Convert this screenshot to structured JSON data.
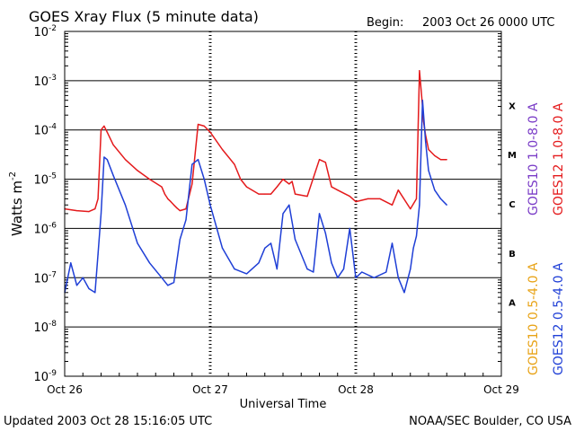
{
  "header": {
    "title": "GOES Xray Flux (5 minute data)",
    "begin_label": "Begin:",
    "begin_value": "2003 Oct 26 0000 UTC"
  },
  "footer": {
    "updated": "Updated 2003 Oct 28 15:16:05 UTC",
    "source": "NOAA/SEC Boulder, CO USA"
  },
  "colors": {
    "goes12_long": "#e41a1c",
    "goes12_short": "#1f3fd6",
    "goes10_long": "#7a3cc7",
    "goes10_short": "#e8a317",
    "axis": "#000000"
  },
  "chart_data": {
    "type": "line",
    "title": "GOES Xray Flux (5 minute data)",
    "xlabel": "Universal Time",
    "ylabel": "Watts m",
    "ylabel_superscript": "-2",
    "y_scale": "log",
    "ylim": [
      1e-09,
      0.01
    ],
    "xlim": [
      "2003-10-26T00:00",
      "2003-10-29T00:00"
    ],
    "x_ticks": [
      {
        "label": "Oct 26",
        "t": "2003-10-26T00:00"
      },
      {
        "label": "Oct 27",
        "t": "2003-10-27T00:00"
      },
      {
        "label": "Oct 28",
        "t": "2003-10-28T00:00"
      },
      {
        "label": "Oct 29",
        "t": "2003-10-29T00:00"
      }
    ],
    "y_ticks": [
      {
        "base": "10",
        "exp": "-9",
        "value": 1e-09
      },
      {
        "base": "10",
        "exp": "-8",
        "value": 1e-08
      },
      {
        "base": "10",
        "exp": "-7",
        "value": 1e-07
      },
      {
        "base": "10",
        "exp": "-6",
        "value": 1e-06
      },
      {
        "base": "10",
        "exp": "-5",
        "value": 1e-05
      },
      {
        "base": "10",
        "exp": "-4",
        "value": 0.0001
      },
      {
        "base": "10",
        "exp": "-3",
        "value": 0.001
      },
      {
        "base": "10",
        "exp": "-2",
        "value": 0.01
      }
    ],
    "grid": "horizontal lines at each decade",
    "flare_classes": [
      {
        "label": "X",
        "value": 0.000316
      },
      {
        "label": "M",
        "value": 3.16e-05
      },
      {
        "label": "C",
        "value": 3.16e-06
      },
      {
        "label": "B",
        "value": 3.16e-07
      },
      {
        "label": "A",
        "value": 3.16e-08
      }
    ],
    "legend": [
      {
        "text": "GOES10 1.0-8.0 A",
        "color": "#7a3cc7"
      },
      {
        "text": "GOES12 1.0-8.0 A",
        "color": "#e41a1c"
      },
      {
        "text": "GOES10 0.5-4.0 A",
        "color": "#e8a317"
      },
      {
        "text": "GOES12 0.5-4.0 A",
        "color": "#1f3fd6"
      }
    ],
    "legend_position": "right, vertical",
    "series": [
      {
        "name": "GOES12 1.0-8.0 A",
        "color": "#e41a1c",
        "x": [
          "2003-10-26T00:00",
          "2003-10-26T02:00",
          "2003-10-26T04:00",
          "2003-10-26T05:00",
          "2003-10-26T05:30",
          "2003-10-26T06:00",
          "2003-10-26T06:30",
          "2003-10-26T07:00",
          "2003-10-26T08:00",
          "2003-10-26T10:00",
          "2003-10-26T12:00",
          "2003-10-26T14:00",
          "2003-10-26T16:00",
          "2003-10-26T16:30",
          "2003-10-26T17:00",
          "2003-10-26T17:30",
          "2003-10-26T18:00",
          "2003-10-26T18:30",
          "2003-10-26T19:00",
          "2003-10-26T20:00",
          "2003-10-26T21:00",
          "2003-10-26T22:00",
          "2003-10-26T23:00",
          "2003-10-27T00:00",
          "2003-10-27T02:00",
          "2003-10-27T04:00",
          "2003-10-27T05:00",
          "2003-10-27T06:00",
          "2003-10-27T08:00",
          "2003-10-27T09:00",
          "2003-10-27T10:00",
          "2003-10-27T11:00",
          "2003-10-27T12:00",
          "2003-10-27T13:00",
          "2003-10-27T13:30",
          "2003-10-27T14:00",
          "2003-10-27T16:00",
          "2003-10-27T18:00",
          "2003-10-27T19:00",
          "2003-10-27T20:00",
          "2003-10-27T21:00",
          "2003-10-27T23:00",
          "2003-10-28T00:00",
          "2003-10-28T02:00",
          "2003-10-28T04:00",
          "2003-10-28T06:00",
          "2003-10-28T07:00",
          "2003-10-28T09:00",
          "2003-10-28T10:00",
          "2003-10-28T10:30",
          "2003-10-28T11:00",
          "2003-10-28T11:10",
          "2003-10-28T11:30",
          "2003-10-28T12:00",
          "2003-10-28T13:00",
          "2003-10-28T14:00",
          "2003-10-28T15:00"
        ],
        "values": [
          2.5e-06,
          2.3e-06,
          2.2e-06,
          2.5e-06,
          4e-06,
          0.0001,
          0.00012,
          9e-05,
          5e-05,
          2.5e-05,
          1.5e-05,
          1e-05,
          7e-06,
          5e-06,
          4e-06,
          3.5e-06,
          3e-06,
          2.6e-06,
          2.3e-06,
          2.5e-06,
          8e-06,
          0.00013,
          0.00012,
          9e-05,
          4e-05,
          2e-05,
          1e-05,
          7e-06,
          5e-06,
          5e-06,
          5e-06,
          7e-06,
          1e-05,
          8e-06,
          9e-06,
          5e-06,
          4.5e-06,
          2.5e-05,
          2.2e-05,
          7e-06,
          6e-06,
          4.5e-06,
          3.5e-06,
          4e-06,
          4e-06,
          3e-06,
          6e-06,
          2.5e-06,
          4e-06,
          0.0016,
          0.0003,
          0.00015,
          8e-05,
          4e-05,
          3e-05,
          2.5e-05,
          2.5e-05
        ]
      },
      {
        "name": "GOES12 0.5-4.0 A",
        "color": "#1f3fd6",
        "x": [
          "2003-10-26T00:00",
          "2003-10-26T01:00",
          "2003-10-26T02:00",
          "2003-10-26T03:00",
          "2003-10-26T04:00",
          "2003-10-26T05:00",
          "2003-10-26T05:30",
          "2003-10-26T06:00",
          "2003-10-26T06:30",
          "2003-10-26T07:00",
          "2003-10-26T08:00",
          "2003-10-26T10:00",
          "2003-10-26T12:00",
          "2003-10-26T14:00",
          "2003-10-26T16:00",
          "2003-10-26T17:00",
          "2003-10-26T18:00",
          "2003-10-26T19:00",
          "2003-10-26T20:00",
          "2003-10-26T21:00",
          "2003-10-26T22:00",
          "2003-10-26T23:00",
          "2003-10-27T00:00",
          "2003-10-27T02:00",
          "2003-10-27T04:00",
          "2003-10-27T06:00",
          "2003-10-27T08:00",
          "2003-10-27T09:00",
          "2003-10-27T10:00",
          "2003-10-27T11:00",
          "2003-10-27T12:00",
          "2003-10-27T13:00",
          "2003-10-27T14:00",
          "2003-10-27T16:00",
          "2003-10-27T17:00",
          "2003-10-27T18:00",
          "2003-10-27T19:00",
          "2003-10-27T20:00",
          "2003-10-27T21:00",
          "2003-10-27T22:00",
          "2003-10-27T23:00",
          "2003-10-28T00:00",
          "2003-10-28T01:00",
          "2003-10-28T03:00",
          "2003-10-28T05:00",
          "2003-10-28T06:00",
          "2003-10-28T07:00",
          "2003-10-28T08:00",
          "2003-10-28T09:00",
          "2003-10-28T09:30",
          "2003-10-28T10:00",
          "2003-10-28T10:30",
          "2003-10-28T11:00",
          "2003-10-28T11:30",
          "2003-10-28T12:00",
          "2003-10-28T13:00",
          "2003-10-28T14:00",
          "2003-10-28T15:00"
        ],
        "values": [
          5e-08,
          2e-07,
          7e-08,
          1e-07,
          6e-08,
          5e-08,
          3e-07,
          2e-06,
          2.8e-05,
          2.5e-05,
          1.2e-05,
          3e-06,
          5e-07,
          2e-07,
          1e-07,
          7e-08,
          8e-08,
          6e-07,
          1.5e-06,
          2e-05,
          2.5e-05,
          1e-05,
          3e-06,
          4e-07,
          1.5e-07,
          1.2e-07,
          2e-07,
          4e-07,
          5e-07,
          1.5e-07,
          2e-06,
          3e-06,
          6e-07,
          1.5e-07,
          1.3e-07,
          2e-06,
          8e-07,
          2e-07,
          1e-07,
          1.5e-07,
          1e-06,
          1e-07,
          1.3e-07,
          1e-07,
          1.3e-07,
          5e-07,
          1e-07,
          5e-08,
          1.5e-07,
          4e-07,
          7e-07,
          3e-06,
          0.0004,
          6e-05,
          1.5e-05,
          6e-06,
          4e-06,
          3e-06
        ]
      }
    ]
  }
}
